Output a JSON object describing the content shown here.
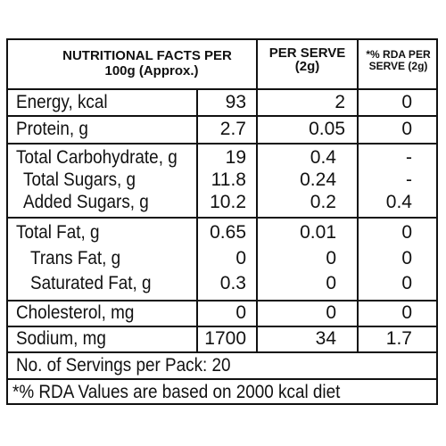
{
  "table": {
    "headers": {
      "col1": "NUTRITIONAL FACTS PER",
      "col1_line2": "100g (Approx.)",
      "col2": "PER SERVE",
      "col2_line2": "(2g)",
      "col3": "*% RDA PER",
      "col3_line2": "SERVE (2g)"
    },
    "rows": [
      {
        "label": "Energy, kcal",
        "per100": "93",
        "serve": "2",
        "rda": "0"
      },
      {
        "label": "Protein, g",
        "per100": "2.7",
        "serve": "0.05",
        "rda": "0"
      },
      {
        "label": "Total Carbohydrate, g",
        "per100": "19",
        "serve": "0.4",
        "rda": "-"
      },
      {
        "label": "Total Sugars, g",
        "per100": "11.8",
        "serve": "0.24",
        "rda": "-"
      },
      {
        "label": "Added Sugars, g",
        "per100": "10.2",
        "serve": "0.2",
        "rda": "0.4"
      },
      {
        "label": "Total Fat, g",
        "per100": "0.65",
        "serve": "0.01",
        "rda": "0"
      },
      {
        "label": "Trans Fat, g",
        "per100": "0",
        "serve": "0",
        "rda": "0"
      },
      {
        "label": "Saturated Fat, g",
        "per100": "0.3",
        "serve": "0",
        "rda": "0"
      },
      {
        "label": "Cholesterol, mg",
        "per100": "0",
        "serve": "0",
        "rda": "0"
      },
      {
        "label": "Sodium, mg",
        "per100": "1700",
        "serve": "34",
        "rda": "1.7"
      }
    ],
    "servings_note": "No. of Servings per Pack: 20",
    "rda_note": "*% RDA Values are based on 2000 kcal diet"
  }
}
